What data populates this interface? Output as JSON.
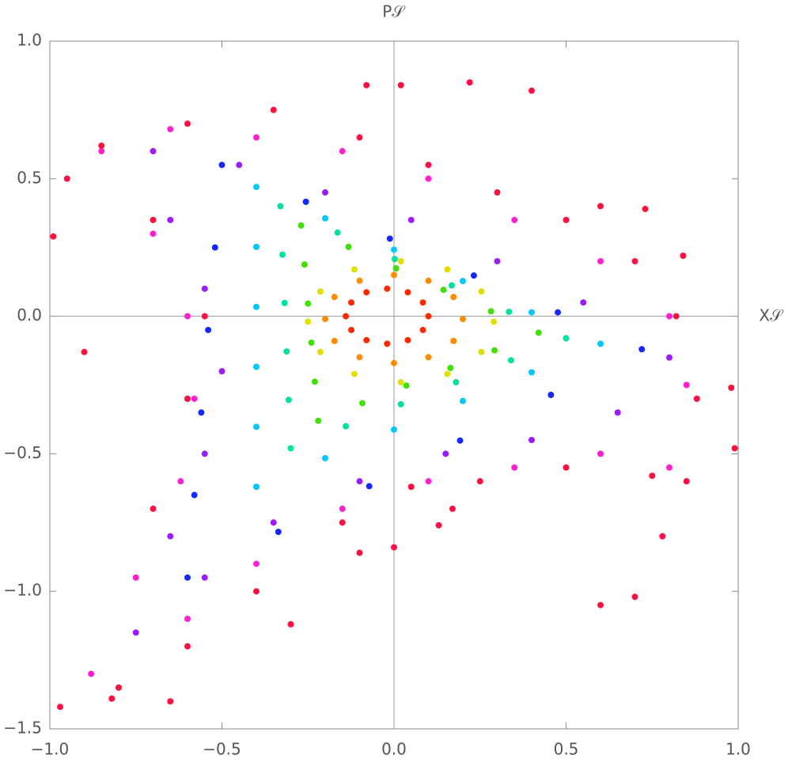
{
  "chart_data": {
    "type": "scatter",
    "x_label": "X𝒮",
    "y_label": "P𝒮",
    "xlim": [
      -1,
      1
    ],
    "ylim": [
      -1.5,
      1
    ],
    "xticks": [
      {
        "value": -1,
        "label": "−1.0"
      },
      {
        "value": -0.5,
        "label": "−0.5"
      },
      {
        "value": 0,
        "label": "0.0"
      },
      0.5,
      {
        "value": 1,
        "label": "1.0"
      }
    ],
    "yticks": [
      {
        "value": -1.5,
        "label": "−1.5"
      },
      {
        "value": -1,
        "label": "−1.0"
      },
      {
        "value": -0.5,
        "label": "−0.5"
      },
      {
        "value": 0,
        "label": "0.0"
      },
      0.5,
      {
        "value": 1,
        "label": "1.0"
      }
    ],
    "series": [
      {
        "color": "#ff2a00",
        "x": [
          0.1,
          0.084,
          0.04,
          -0.02,
          -0.08,
          -0.124,
          -0.14,
          -0.124,
          -0.08,
          -0.02,
          0.04,
          0.084
        ],
        "y": [
          0,
          0.05,
          0.087,
          0.1,
          0.087,
          0.05,
          0,
          -0.05,
          -0.087,
          -0.1,
          -0.087,
          -0.05
        ]
      },
      {
        "color": "#ff8c00",
        "x": [
          0.2,
          0.173,
          0.1,
          0,
          -0.1,
          -0.173,
          -0.2,
          -0.173,
          -0.1,
          0,
          0.1,
          0.173
        ],
        "y": [
          -0.01,
          0.07,
          0.129,
          0.15,
          0.129,
          0.07,
          -0.01,
          -0.09,
          -0.149,
          -0.17,
          -0.149,
          -0.09
        ]
      },
      {
        "color": "#e0e000",
        "x": [
          0.29,
          0.254,
          0.155,
          0.02,
          -0.115,
          -0.214,
          -0.25,
          -0.214,
          -0.115,
          0.02,
          0.155,
          0.254
        ],
        "y": [
          -0.02,
          0.09,
          0.17,
          0.2,
          0.17,
          0.09,
          -0.02,
          -0.13,
          -0.21,
          -0.24,
          -0.21,
          -0.13
        ]
      },
      {
        "color": "#40e000",
        "x": [
          -0.27,
          -0.132,
          0.006,
          0.144,
          0.282,
          0.42,
          0.292,
          0.164,
          0.036,
          -0.092,
          -0.22,
          -0.23,
          -0.24,
          -0.25,
          -0.26
        ],
        "y": [
          0.33,
          0.252,
          0.174,
          0.096,
          0.018,
          -0.06,
          -0.124,
          -0.188,
          -0.252,
          -0.316,
          -0.38,
          -0.238,
          -0.096,
          0.046,
          0.188
        ]
      },
      {
        "color": "#00e0a0",
        "x": [
          -0.33,
          -0.164,
          0.002,
          0.168,
          0.334,
          0.5,
          0.34,
          0.18,
          0.02,
          -0.14,
          -0.3,
          -0.306,
          -0.312,
          -0.318,
          -0.324
        ],
        "y": [
          0.4,
          0.304,
          0.208,
          0.112,
          0.016,
          -0.08,
          -0.16,
          -0.24,
          -0.32,
          -0.4,
          -0.48,
          -0.304,
          -0.128,
          0.048,
          0.224
        ]
      },
      {
        "color": "#00c8ff",
        "x": [
          -0.4,
          -0.2,
          0,
          0.2,
          0.4,
          0.6,
          0.4,
          0.2,
          0,
          -0.2,
          -0.4,
          -0.4,
          -0.4,
          -0.4,
          -0.4
        ],
        "y": [
          0.47,
          0.356,
          0.242,
          0.128,
          0.014,
          -0.1,
          -0.204,
          -0.308,
          -0.412,
          -0.516,
          -0.62,
          -0.402,
          -0.184,
          0.034,
          0.252
        ]
      },
      {
        "color": "#1428ff",
        "x": [
          -0.5,
          -0.256,
          -0.012,
          0.232,
          0.476,
          0.72,
          0.456,
          0.192,
          -0.072,
          -0.336,
          -0.6,
          -0.58,
          -0.56,
          -0.54,
          -0.52
        ],
        "y": [
          0.55,
          0.416,
          0.282,
          0.148,
          0.014,
          -0.12,
          -0.286,
          -0.452,
          -0.618,
          -0.784,
          -0.95,
          -0.65,
          -0.35,
          -0.05,
          0.25
        ]
      },
      {
        "color": "#9b1cff",
        "x": [
          -0.7,
          -0.45,
          -0.2,
          0.05,
          0.3,
          0.55,
          0.8,
          0.65,
          0.4,
          0.15,
          -0.1,
          -0.35,
          -0.55,
          -0.75,
          -0.65,
          -0.55,
          -0.5,
          -0.55,
          -0.65
        ],
        "y": [
          0.6,
          0.55,
          0.45,
          0.35,
          0.2,
          0.05,
          -0.15,
          -0.35,
          -0.45,
          -0.5,
          -0.6,
          -0.75,
          -0.95,
          -1.15,
          -0.8,
          -0.5,
          -0.2,
          0.1,
          0.35
        ]
      },
      {
        "color": "#ff20d0",
        "x": [
          -0.85,
          -0.65,
          -0.4,
          -0.15,
          0.1,
          0.35,
          0.6,
          0.8,
          0.85,
          0.8,
          0.6,
          0.35,
          0.1,
          -0.15,
          -0.4,
          -0.6,
          -0.88,
          -0.75,
          -0.62,
          -0.58,
          -0.6,
          -0.7
        ],
        "y": [
          0.6,
          0.68,
          0.65,
          0.6,
          0.5,
          0.35,
          0.2,
          0.0,
          -0.25,
          -0.55,
          -0.5,
          -0.55,
          -0.6,
          -0.7,
          -0.9,
          -1.1,
          -1.3,
          -0.95,
          -0.6,
          -0.3,
          0.0,
          0.3
        ]
      },
      {
        "color": "#ff1040",
        "x": [
          -0.95,
          -0.85,
          -0.6,
          -0.35,
          -0.1,
          0.1,
          0.3,
          0.5,
          0.7,
          0.82,
          0.88,
          0.85,
          0.75,
          0.5,
          0.25,
          0.05,
          -0.15,
          -0.4,
          -0.6,
          -0.8,
          -0.97,
          -0.7,
          -0.6,
          -0.55,
          -0.7,
          -0.99,
          -0.9,
          -0.08,
          0.02,
          0.22,
          0.4,
          0.6,
          0.73,
          0.84,
          0.98,
          0.99,
          0.6,
          0.7,
          0.78,
          -0.3,
          -0.65,
          -0.82,
          0.0,
          -0.1,
          0.13,
          0.17
        ],
        "y": [
          0.5,
          0.62,
          0.7,
          0.75,
          0.65,
          0.55,
          0.45,
          0.35,
          0.2,
          0.0,
          -0.3,
          -0.6,
          -0.58,
          -0.55,
          -0.6,
          -0.62,
          -0.75,
          -1.0,
          -1.2,
          -1.35,
          -1.42,
          -0.7,
          -0.3,
          0.0,
          0.35,
          0.29,
          -0.13,
          0.84,
          0.84,
          0.85,
          0.82,
          0.4,
          0.39,
          0.22,
          -0.26,
          -0.48,
          -1.05,
          -1.02,
          -0.8,
          -1.12,
          -1.4,
          -1.39,
          -0.84,
          -0.86,
          -0.76,
          -0.7
        ]
      }
    ]
  }
}
